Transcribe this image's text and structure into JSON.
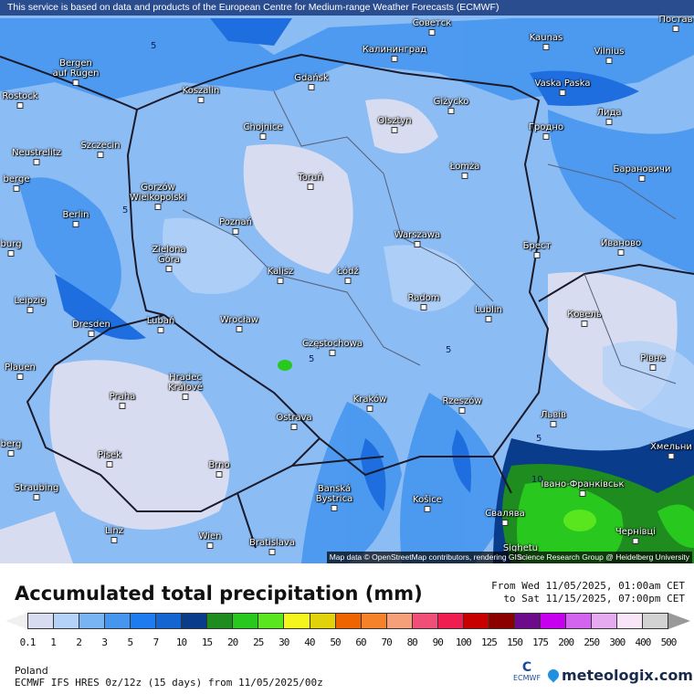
{
  "header": {
    "disclaimer": "This service is based on data and products of the European Centre for Medium-range Weather Forecasts (ECMWF)"
  },
  "map": {
    "attribution": "Map data © OpenStreetMap contributors, rendering GIScience Research Group @ Heidelberg University",
    "cities": [
      "Советск",
      "Постав",
      "Kaunas",
      "Vilnius",
      "Калининград",
      "Bergen\nauf Rügen",
      "Gdańsk",
      "Koszalin",
      "Vaska Paska",
      "Rostock",
      "Giżycko",
      "Лида",
      "Olsztyn",
      "Chojnice",
      "Гродно",
      "Neustrelitz",
      "Szczecin",
      "Łomża",
      "Барановичи",
      "Toruń",
      "Gorzów\nWielkopolski",
      "berge",
      "Berlin",
      "Poznań",
      "Warszawa",
      "Брест",
      "Иваново",
      "burg",
      "Zielona\nGóra",
      "Kalisz",
      "Łódź",
      "Radom",
      "Leipzig",
      "Lublin",
      "Ковель",
      "Dresden",
      "Lubań",
      "Wrocław",
      "Częstochowa",
      "Plauen",
      "Рівне",
      "Hradec\nKrálové",
      "Praha",
      "Kraków",
      "Rzeszów",
      "Львів",
      "Ostrava",
      "berg",
      "Písek",
      "Хмельни",
      "Brno",
      "Івано-Франківськ",
      "Straubing",
      "Banská\nBystrica",
      "Košice",
      "Свалява",
      "Linz",
      "Wien",
      "Bratislava",
      "Чернівці",
      "Sighetu"
    ],
    "contour_labels": [
      "5",
      "5",
      "5",
      "5",
      "5",
      "10"
    ]
  },
  "legend": {
    "title": "Accumulated total precipitation (mm)",
    "period_from": "From Wed 11/05/2025, 01:00am CET",
    "period_to": "to Sat 11/15/2025, 07:00pm CET",
    "ticks": [
      "0.1",
      "1",
      "2",
      "3",
      "5",
      "7",
      "10",
      "15",
      "20",
      "25",
      "30",
      "40",
      "50",
      "60",
      "70",
      "80",
      "90",
      "100",
      "125",
      "150",
      "175",
      "200",
      "250",
      "300",
      "400",
      "500"
    ],
    "colors": [
      "#d8dcf0",
      "#b4d2f8",
      "#78b4f4",
      "#4696f0",
      "#1e7cf0",
      "#1464d2",
      "#0a3c8c",
      "#1e8c1e",
      "#28c81e",
      "#5ae61e",
      "#f5f51e",
      "#e1d20a",
      "#f06400",
      "#f58228",
      "#f5a078",
      "#f05078",
      "#f01e50",
      "#c80000",
      "#8c0000",
      "#6e0a8c",
      "#c800f0",
      "#d264f0",
      "#e6aaf0",
      "#f8e6f8",
      "#d2d2d2"
    ],
    "under_color": "#f0f0f0",
    "over_color": "#999999"
  },
  "footer": {
    "region": "Poland",
    "model": "ECMWF IFS HRES 0z/12z (15 days) from  11/05/2025/00z",
    "ecmwf_logo": "ECMWF",
    "brand": "meteologix.com"
  }
}
